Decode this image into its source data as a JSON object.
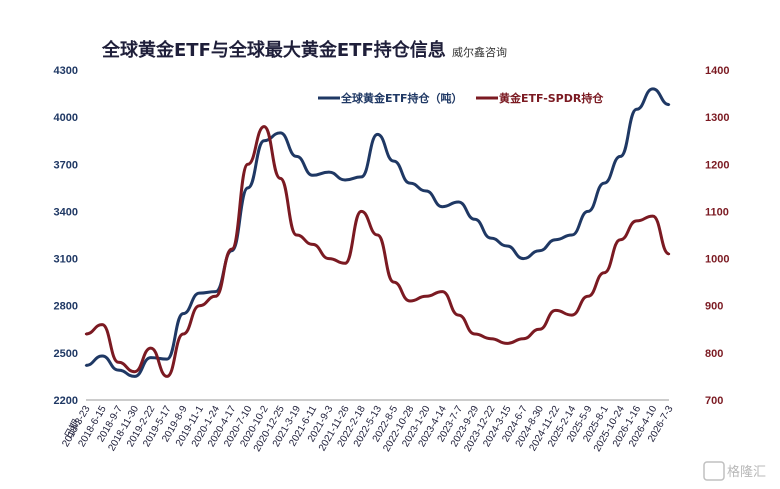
{
  "chart_data": {
    "type": "line",
    "title": "全球黄金ETF与全球最大黄金ETF持仓信息",
    "subtitle": "威尔鑫咨询",
    "watermark": "格隆汇",
    "x_axis_first_label": "日期",
    "x": [
      "2018-3-23",
      "2018-6-15",
      "2018-9-7",
      "2018-11-30",
      "2019-2-22",
      "2019-5-17",
      "2019-8-9",
      "2019-11-1",
      "2020-1-24",
      "2020-4-17",
      "2020-7-10",
      "2020-10-2",
      "2020-12-25",
      "2021-3-19",
      "2021-6-11",
      "2021-9-3",
      "2021-11-26",
      "2022-2-18",
      "2022-5-13",
      "2022-8-5",
      "2022-10-28",
      "2023-1-20",
      "2023-4-14",
      "2023-7-7",
      "2023-9-29",
      "2023-12-22",
      "2024-3-15",
      "2024-6-7",
      "2024-8-30",
      "2024-11-22",
      "2025-2-14",
      "2025-5-9",
      "2025-8-1",
      "2025-10-24",
      "2026-1-16",
      "2026-4-10",
      "2026-7-3"
    ],
    "y_left": {
      "ylim": [
        2200,
        4300
      ],
      "ticks": [
        2200,
        2500,
        2800,
        3100,
        3400,
        3700,
        4000,
        4300
      ],
      "color": "#1f3864"
    },
    "y_right": {
      "ylim": [
        700,
        1400
      ],
      "ticks": [
        700,
        800,
        900,
        1000,
        1100,
        1200,
        1300,
        1400
      ],
      "color": "#7b1a22"
    },
    "legend_position": "top-right",
    "series": [
      {
        "name": "全球黄金ETF持仓（吨）",
        "axis": "left",
        "color": "#1f3864",
        "values": [
          2420,
          2480,
          2390,
          2350,
          2470,
          2460,
          2750,
          2880,
          2890,
          3150,
          3550,
          3850,
          3900,
          3750,
          3630,
          3650,
          3600,
          3620,
          3890,
          3720,
          3580,
          3530,
          3430,
          3460,
          3350,
          3230,
          3180,
          3100,
          3150,
          3220,
          3250,
          3400,
          3580,
          3750,
          4050,
          4180,
          4080
        ]
      },
      {
        "name": "黄金ETF-SPDR持仓",
        "axis": "right",
        "color": "#7b1a22",
        "values": [
          840,
          860,
          780,
          760,
          810,
          750,
          840,
          900,
          920,
          1020,
          1200,
          1280,
          1170,
          1050,
          1030,
          1000,
          990,
          1100,
          1050,
          950,
          910,
          920,
          930,
          880,
          840,
          830,
          820,
          830,
          850,
          890,
          880,
          920,
          970,
          1040,
          1080,
          1090,
          1010
        ]
      }
    ]
  }
}
